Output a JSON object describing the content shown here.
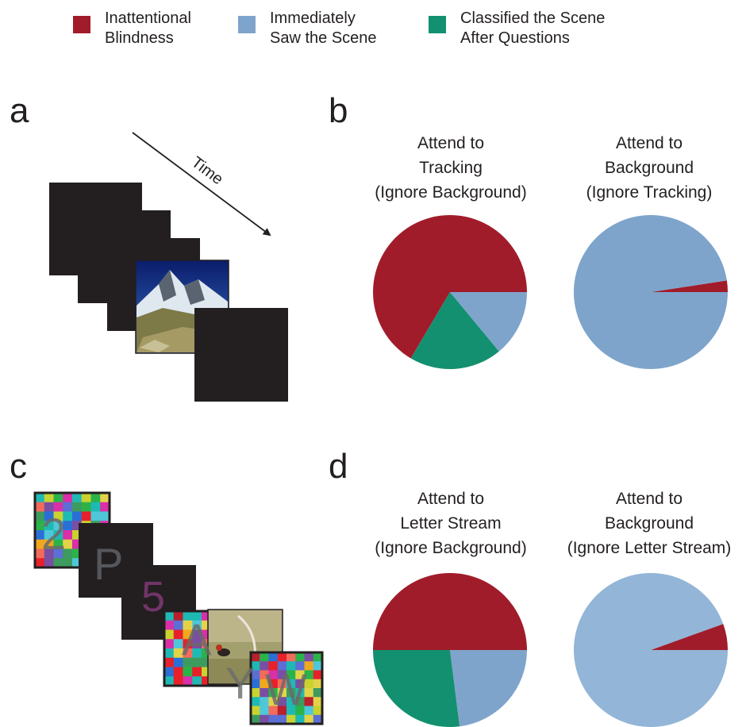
{
  "legend": {
    "items": [
      {
        "lines": [
          "Inattentional",
          "Blindness"
        ],
        "color": "#a11c2a"
      },
      {
        "lines": [
          "Immediately",
          "Saw the Scene"
        ],
        "color": "#7ea4cb"
      },
      {
        "lines": [
          "Classified the Scene",
          "After Questions"
        ],
        "color": "#13906f"
      }
    ]
  },
  "panels": {
    "a": {
      "letter": "a",
      "time_label": "Time"
    },
    "b": {
      "letter": "b"
    },
    "c": {
      "letter": "c",
      "letters": [
        "2",
        "P",
        "5",
        "A",
        "Y",
        "W"
      ]
    },
    "d": {
      "letter": "d"
    }
  },
  "chart_data": [
    {
      "type": "pie",
      "panel": "b",
      "title_lines": [
        "Attend to",
        "Tracking",
        "(Ignore Background)"
      ],
      "slices": [
        {
          "label": "Inattentional Blindness",
          "value": 0.665,
          "color": "#a11c2a"
        },
        {
          "label": "Classified the Scene After Questions",
          "value": 0.195,
          "color": "#13906f"
        },
        {
          "label": "Immediately Saw the Scene",
          "value": 0.14,
          "color": "#7ea4cb"
        }
      ]
    },
    {
      "type": "pie",
      "panel": "b",
      "title_lines": [
        "Attend to",
        "Background",
        "(Ignore Tracking)"
      ],
      "slices": [
        {
          "label": "Inattentional Blindness",
          "value": 0.024,
          "color": "#a11c2a"
        },
        {
          "label": "Immediately Saw the Scene",
          "value": 0.976,
          "color": "#7ea4cb"
        }
      ]
    },
    {
      "type": "pie",
      "panel": "d",
      "title_lines": [
        "Attend to",
        "Letter Stream",
        "(Ignore Background)"
      ],
      "slices": [
        {
          "label": "Inattentional Blindness",
          "value": 0.5,
          "color": "#a11c2a"
        },
        {
          "label": "Classified the Scene After Questions",
          "value": 0.27,
          "color": "#13906f"
        },
        {
          "label": "Immediately Saw the Scene",
          "value": 0.23,
          "color": "#7ea4cb"
        }
      ]
    },
    {
      "type": "pie",
      "panel": "d",
      "title_lines": [
        "Attend to",
        "Background",
        "(Ignore Letter Stream)"
      ],
      "slices": [
        {
          "label": "Inattentional Blindness",
          "value": 0.055,
          "color": "#a11c2a"
        },
        {
          "label": "Immediately Saw the Scene",
          "value": 0.945,
          "color": "#93b5d7"
        }
      ]
    }
  ]
}
